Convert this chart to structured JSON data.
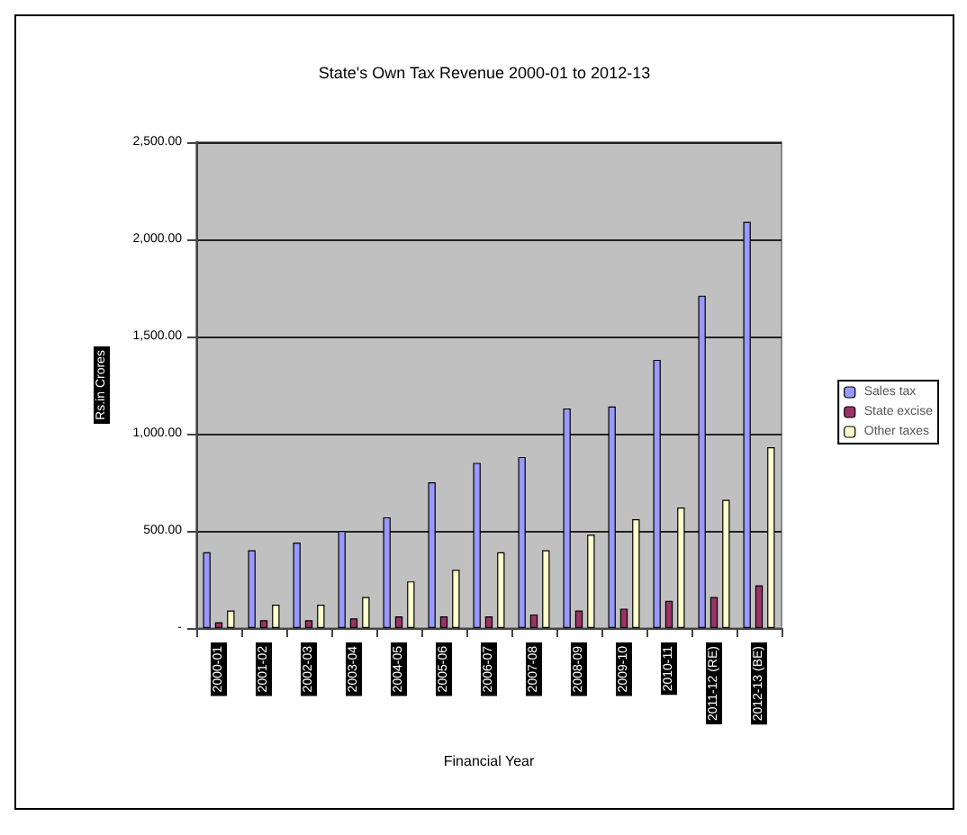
{
  "chart_data": {
    "type": "bar",
    "title": "State's Own Tax Revenue 2000-01 to 2012-13",
    "xlabel": "Financial Year",
    "ylabel": "Rs.in Crores",
    "categories": [
      "2000-01",
      "2001-02",
      "2002-03",
      "2003-04",
      "2004-05",
      "2005-06",
      "2006-07",
      "2007-08",
      "2008-09",
      "2009-10",
      "2010-11",
      "2011-12 (RE)",
      "2012-13 (BE)"
    ],
    "series": [
      {
        "name": "Sales tax",
        "color": "#9999ff",
        "values": [
          390,
          400,
          440,
          500,
          570,
          750,
          850,
          880,
          1130,
          1140,
          1380,
          1710,
          2090
        ]
      },
      {
        "name": "State excise",
        "color": "#993366",
        "values": [
          30,
          40,
          40,
          50,
          60,
          60,
          60,
          70,
          90,
          100,
          140,
          160,
          220
        ]
      },
      {
        "name": "Other taxes",
        "color": "#ffffcc",
        "values": [
          90,
          120,
          120,
          160,
          240,
          300,
          390,
          400,
          480,
          560,
          620,
          660,
          930
        ]
      }
    ],
    "ylim": [
      0,
      2500
    ],
    "yticks": [
      {
        "value": 0,
        "label": "-"
      },
      {
        "value": 500,
        "label": "500.00"
      },
      {
        "value": 1000,
        "label": "1,000.00"
      },
      {
        "value": 1500,
        "label": "1,500.00"
      },
      {
        "value": 2000,
        "label": "2,000.00"
      },
      {
        "value": 2500,
        "label": "2,500.00"
      }
    ],
    "grid": "y",
    "legend": "right"
  }
}
